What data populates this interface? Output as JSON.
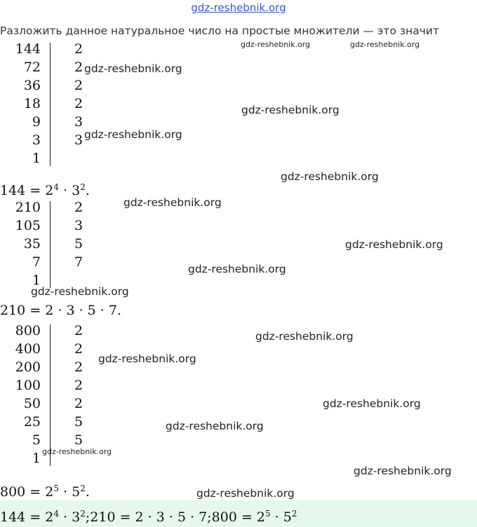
{
  "site_link": "gdz-reshebnik.org",
  "intro": "Разложить данное натуральное число на простые множители — это значит",
  "tables": [
    {
      "rows": [
        {
          "n": "144",
          "d": "2"
        },
        {
          "n": "72",
          "d": "2"
        },
        {
          "n": "36",
          "d": "2"
        },
        {
          "n": "18",
          "d": "2"
        },
        {
          "n": "9",
          "d": "3"
        },
        {
          "n": "3",
          "d": "3"
        },
        {
          "n": "1",
          "d": ""
        }
      ],
      "formula": {
        "lhs": "144 = 2",
        "e1": "4",
        "mid": " · 3",
        "e2": "2",
        "tail": "."
      }
    },
    {
      "rows": [
        {
          "n": "210",
          "d": "2"
        },
        {
          "n": "105",
          "d": "3"
        },
        {
          "n": "35",
          "d": "5"
        },
        {
          "n": "7",
          "d": "7"
        },
        {
          "n": "1",
          "d": ""
        }
      ],
      "formula": {
        "text": "210 = 2 · 3 · 5 · 7."
      }
    },
    {
      "rows": [
        {
          "n": "800",
          "d": "2"
        },
        {
          "n": "400",
          "d": "2"
        },
        {
          "n": "200",
          "d": "2"
        },
        {
          "n": "100",
          "d": "2"
        },
        {
          "n": "50",
          "d": "2"
        },
        {
          "n": "25",
          "d": "5"
        },
        {
          "n": "5",
          "d": "5"
        },
        {
          "n": "1",
          "d": ""
        }
      ],
      "formula": {
        "lhs": "800 = 2",
        "e1": "5",
        "mid": " · 5",
        "e2": "2",
        "tail": "."
      }
    }
  ],
  "answer": {
    "a1": "144 = 2",
    "a1e1": "4",
    "a1m": " · 3",
    "a1e2": "2",
    "a2": ";210 = 2 · 3 · 5 · 7;",
    "a3": "800 = 2",
    "a3e1": "5",
    "a3m": " · 5",
    "a3e2": "2"
  },
  "watermark": "gdz-reshebnik.org"
}
